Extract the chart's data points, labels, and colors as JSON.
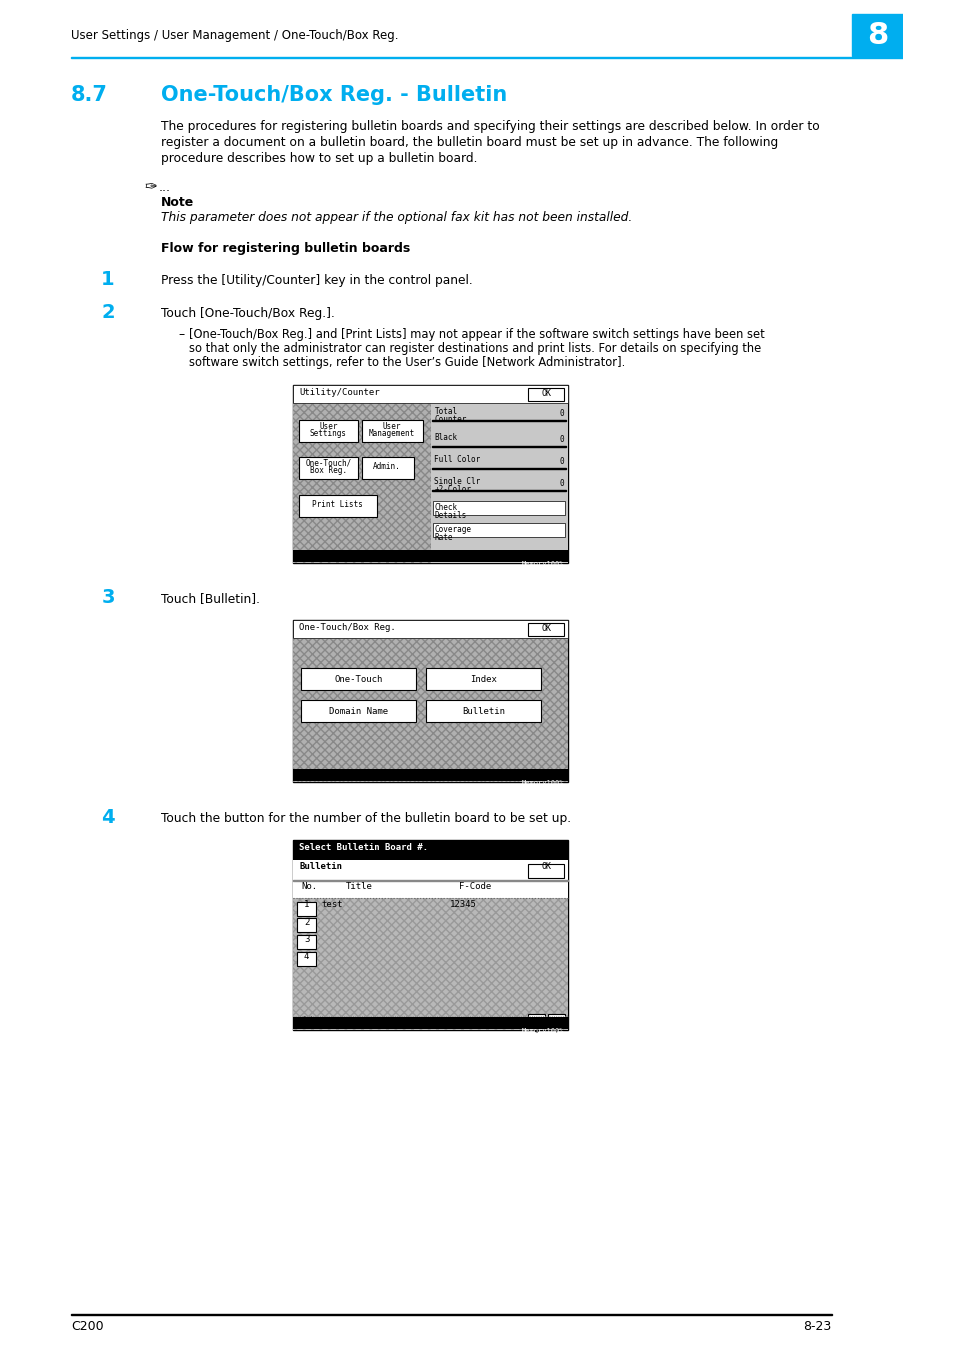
{
  "page_header": "User Settings / User Management / One-Touch/Box Reg.",
  "page_number_box": "8",
  "section_number": "8.7",
  "section_title": "One-Touch/Box Reg. - Bulletin",
  "intro_line1": "The procedures for registering bulletin boards and specifying their settings are described below. In order to",
  "intro_line2": "register a document on a bulletin board, the bulletin board must be set up in advance. The following",
  "intro_line3": "procedure describes how to set up a bulletin board.",
  "note_label": "Note",
  "note_text": "This parameter does not appear if the optional fax kit has not been installed.",
  "flow_title": "Flow for registering bulletin boards",
  "step1_num": "1",
  "step1_text": "Press the [Utility/Counter] key in the control panel.",
  "step2_num": "2",
  "step2_text": "Touch [One-Touch/Box Reg.].",
  "step2_bullet1": "[One-Touch/Box Reg.] and [Print Lists] may not appear if the software switch settings have been set",
  "step2_bullet2": "so that only the administrator can register destinations and print lists. For details on specifying the",
  "step2_bullet3": "software switch settings, refer to the User’s Guide [Network Administrator].",
  "step3_num": "3",
  "step3_text": "Touch [Bulletin].",
  "step4_num": "4",
  "step4_text": "Touch the button for the number of the bulletin board to be set up.",
  "footer_left": "C200",
  "footer_right": "8-23",
  "cyan_color": "#00AEEF",
  "bg_color": "#FFFFFF",
  "hatch_color": "#AAAAAA",
  "screen_bg": "#C0C0C0"
}
